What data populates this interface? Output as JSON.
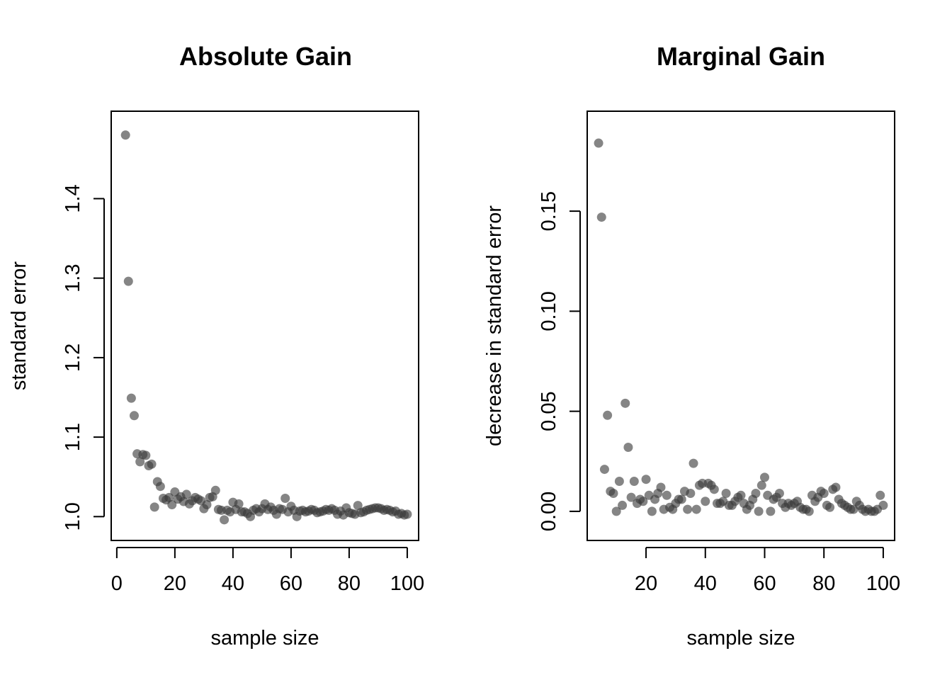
{
  "chart_data": [
    {
      "type": "scatter",
      "title": "Absolute Gain",
      "xlabel": "sample size",
      "ylabel": "standard error",
      "xlim": [
        2,
        100
      ],
      "ylim": [
        0.99,
        1.49
      ],
      "xticks": [
        "0",
        "20",
        "40",
        "60",
        "80",
        "100"
      ],
      "yticks": [
        "1.0",
        "1.1",
        "1.2",
        "1.3",
        "1.4"
      ],
      "point_color": "#3a3a3a",
      "series": [
        {
          "x": [
            3,
            4,
            5,
            6,
            7,
            8,
            9,
            10,
            11,
            12,
            13,
            14,
            15,
            16,
            17,
            18,
            19,
            20,
            21,
            22,
            23,
            24,
            25,
            26,
            27,
            28,
            29,
            30,
            31,
            32,
            33,
            34,
            35,
            36,
            37,
            38,
            39,
            40,
            41,
            42,
            43,
            44,
            45,
            46,
            47,
            48,
            49,
            50,
            51,
            52,
            53,
            54,
            55,
            56,
            57,
            58,
            59,
            60,
            61,
            62,
            63,
            64,
            65,
            66,
            67,
            68,
            69,
            70,
            71,
            72,
            73,
            74,
            75,
            76,
            77,
            78,
            79,
            80,
            81,
            82,
            83,
            84,
            85,
            86,
            87,
            88,
            89,
            90,
            91,
            92,
            93,
            94,
            95,
            96,
            97,
            98,
            99,
            100
          ],
          "y": [
            1.48,
            1.296,
            1.149,
            1.127,
            1.079,
            1.069,
            1.078,
            1.077,
            1.064,
            1.066,
            1.012,
            1.044,
            1.038,
            1.023,
            1.021,
            1.024,
            1.015,
            1.031,
            1.022,
            1.025,
            1.019,
            1.028,
            1.016,
            1.02,
            1.024,
            1.022,
            1.02,
            1.01,
            1.015,
            1.024,
            1.025,
            1.033,
            1.009,
            1.008,
            0.996,
            1.008,
            1.006,
            1.018,
            1.009,
            1.016,
            1.006,
            1.006,
            1.004,
            1.0,
            1.008,
            1.01,
            1.006,
            1.01,
            1.016,
            1.009,
            1.012,
            1.008,
            1.003,
            1.01,
            1.009,
            1.023,
            1.006,
            1.013,
            1.008,
            1.0,
            1.007,
            1.008,
            1.006,
            1.007,
            1.009,
            1.008,
            1.005,
            1.006,
            1.007,
            1.009,
            1.008,
            1.01,
            1.008,
            1.003,
            1.007,
            1.002,
            1.011,
            1.005,
            1.004,
            1.003,
            1.014,
            1.005,
            1.006,
            1.008,
            1.009,
            1.01,
            1.011,
            1.011,
            1.01,
            1.008,
            1.009,
            1.008,
            1.006,
            1.007,
            1.003,
            1.004,
            1.002,
            1.003
          ]
        }
      ]
    },
    {
      "type": "scatter",
      "title": "Marginal Gain",
      "xlabel": "sample size",
      "ylabel": "decrease in standard error",
      "xlim": [
        4,
        100
      ],
      "ylim": [
        -0.0066,
        0.192
      ],
      "xticks": [
        "20",
        "40",
        "60",
        "80",
        "100"
      ],
      "yticks": [
        "0.00",
        "0.05",
        "0.10",
        "0.15"
      ],
      "point_color": "#3a3a3a",
      "series": [
        {
          "x": [
            4,
            5,
            6,
            7,
            8,
            9,
            10,
            11,
            12,
            13,
            14,
            15,
            16,
            17,
            18,
            19,
            20,
            21,
            22,
            23,
            24,
            25,
            26,
            27,
            28,
            29,
            30,
            31,
            32,
            33,
            34,
            35,
            36,
            37,
            38,
            39,
            40,
            41,
            42,
            43,
            44,
            45,
            46,
            47,
            48,
            49,
            50,
            51,
            52,
            53,
            54,
            55,
            56,
            57,
            58,
            59,
            60,
            61,
            62,
            63,
            64,
            65,
            66,
            67,
            68,
            69,
            70,
            71,
            72,
            73,
            74,
            75,
            76,
            77,
            78,
            79,
            80,
            81,
            82,
            83,
            84,
            85,
            86,
            87,
            88,
            89,
            90,
            91,
            92,
            93,
            94,
            95,
            96,
            97,
            98,
            99,
            100
          ],
          "y": [
            0.184,
            0.147,
            0.021,
            0.048,
            0.01,
            0.009,
            0.0,
            0.015,
            0.003,
            0.054,
            0.032,
            0.007,
            0.015,
            0.004,
            0.006,
            0.005,
            0.016,
            0.008,
            0.0,
            0.006,
            0.009,
            0.012,
            0.001,
            0.008,
            0.002,
            0.001,
            0.004,
            0.006,
            0.006,
            0.01,
            0.001,
            0.009,
            0.024,
            0.001,
            0.013,
            0.014,
            0.005,
            0.014,
            0.013,
            0.011,
            0.004,
            0.004,
            0.005,
            0.009,
            0.003,
            0.003,
            0.005,
            0.007,
            0.008,
            0.004,
            0.001,
            0.003,
            0.006,
            0.009,
            0.0,
            0.013,
            0.017,
            0.008,
            0.0,
            0.006,
            0.007,
            0.009,
            0.004,
            0.002,
            0.004,
            0.003,
            0.004,
            0.005,
            0.002,
            0.001,
            0.001,
            0.0,
            0.008,
            0.005,
            0.007,
            0.01,
            0.009,
            0.003,
            0.002,
            0.011,
            0.012,
            0.006,
            0.004,
            0.003,
            0.002,
            0.001,
            0.001,
            0.005,
            0.003,
            0.001,
            0.0,
            0.001,
            0.0,
            0.0,
            0.001,
            0.008,
            0.003
          ]
        }
      ]
    }
  ]
}
